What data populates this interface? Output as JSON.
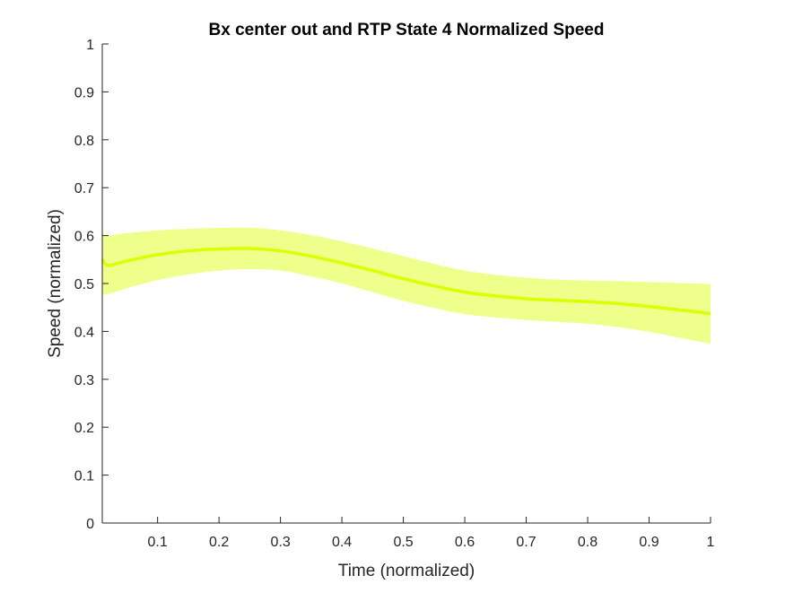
{
  "chart_data": {
    "type": "area",
    "title": "Bx  center out and RTP State 4 Normalized Speed",
    "xlabel": "Time (normalized)",
    "ylabel": "Speed (normalized)",
    "xlim": [
      0.01,
      1
    ],
    "ylim": [
      0,
      1
    ],
    "xticks": [
      0.1,
      0.2,
      0.3,
      0.4,
      0.5,
      0.6,
      0.7,
      0.8,
      0.9,
      1
    ],
    "xtick_labels": [
      "0.1",
      "0.2",
      "0.3",
      "0.4",
      "0.5",
      "0.6",
      "0.7",
      "0.8",
      "0.9",
      "1"
    ],
    "yticks": [
      0,
      0.1,
      0.2,
      0.3,
      0.4,
      0.5,
      0.6,
      0.7,
      0.8,
      0.9,
      1
    ],
    "ytick_labels": [
      "0",
      "0.1",
      "0.2",
      "0.3",
      "0.4",
      "0.5",
      "0.6",
      "0.7",
      "0.8",
      "0.9",
      "1"
    ],
    "grid": false,
    "series": [
      {
        "color": "#d9ff00",
        "band_color": "#eeff8c",
        "x": [
          0.01,
          0.02,
          0.05,
          0.1,
          0.15,
          0.2,
          0.25,
          0.3,
          0.35,
          0.4,
          0.45,
          0.5,
          0.55,
          0.6,
          0.65,
          0.7,
          0.75,
          0.8,
          0.85,
          0.9,
          0.95,
          1.0
        ],
        "y": [
          0.55,
          0.538,
          0.547,
          0.56,
          0.568,
          0.572,
          0.573,
          0.568,
          0.557,
          0.543,
          0.527,
          0.51,
          0.495,
          0.482,
          0.474,
          0.468,
          0.465,
          0.462,
          0.458,
          0.452,
          0.445,
          0.437
        ],
        "upper": [
          0.605,
          0.6,
          0.605,
          0.611,
          0.614,
          0.616,
          0.616,
          0.611,
          0.601,
          0.588,
          0.573,
          0.557,
          0.541,
          0.527,
          0.518,
          0.512,
          0.508,
          0.506,
          0.505,
          0.503,
          0.501,
          0.499
        ],
        "lower": [
          0.478,
          0.478,
          0.49,
          0.507,
          0.519,
          0.527,
          0.53,
          0.527,
          0.515,
          0.5,
          0.482,
          0.464,
          0.449,
          0.436,
          0.429,
          0.424,
          0.42,
          0.416,
          0.409,
          0.399,
          0.387,
          0.374
        ]
      }
    ]
  }
}
